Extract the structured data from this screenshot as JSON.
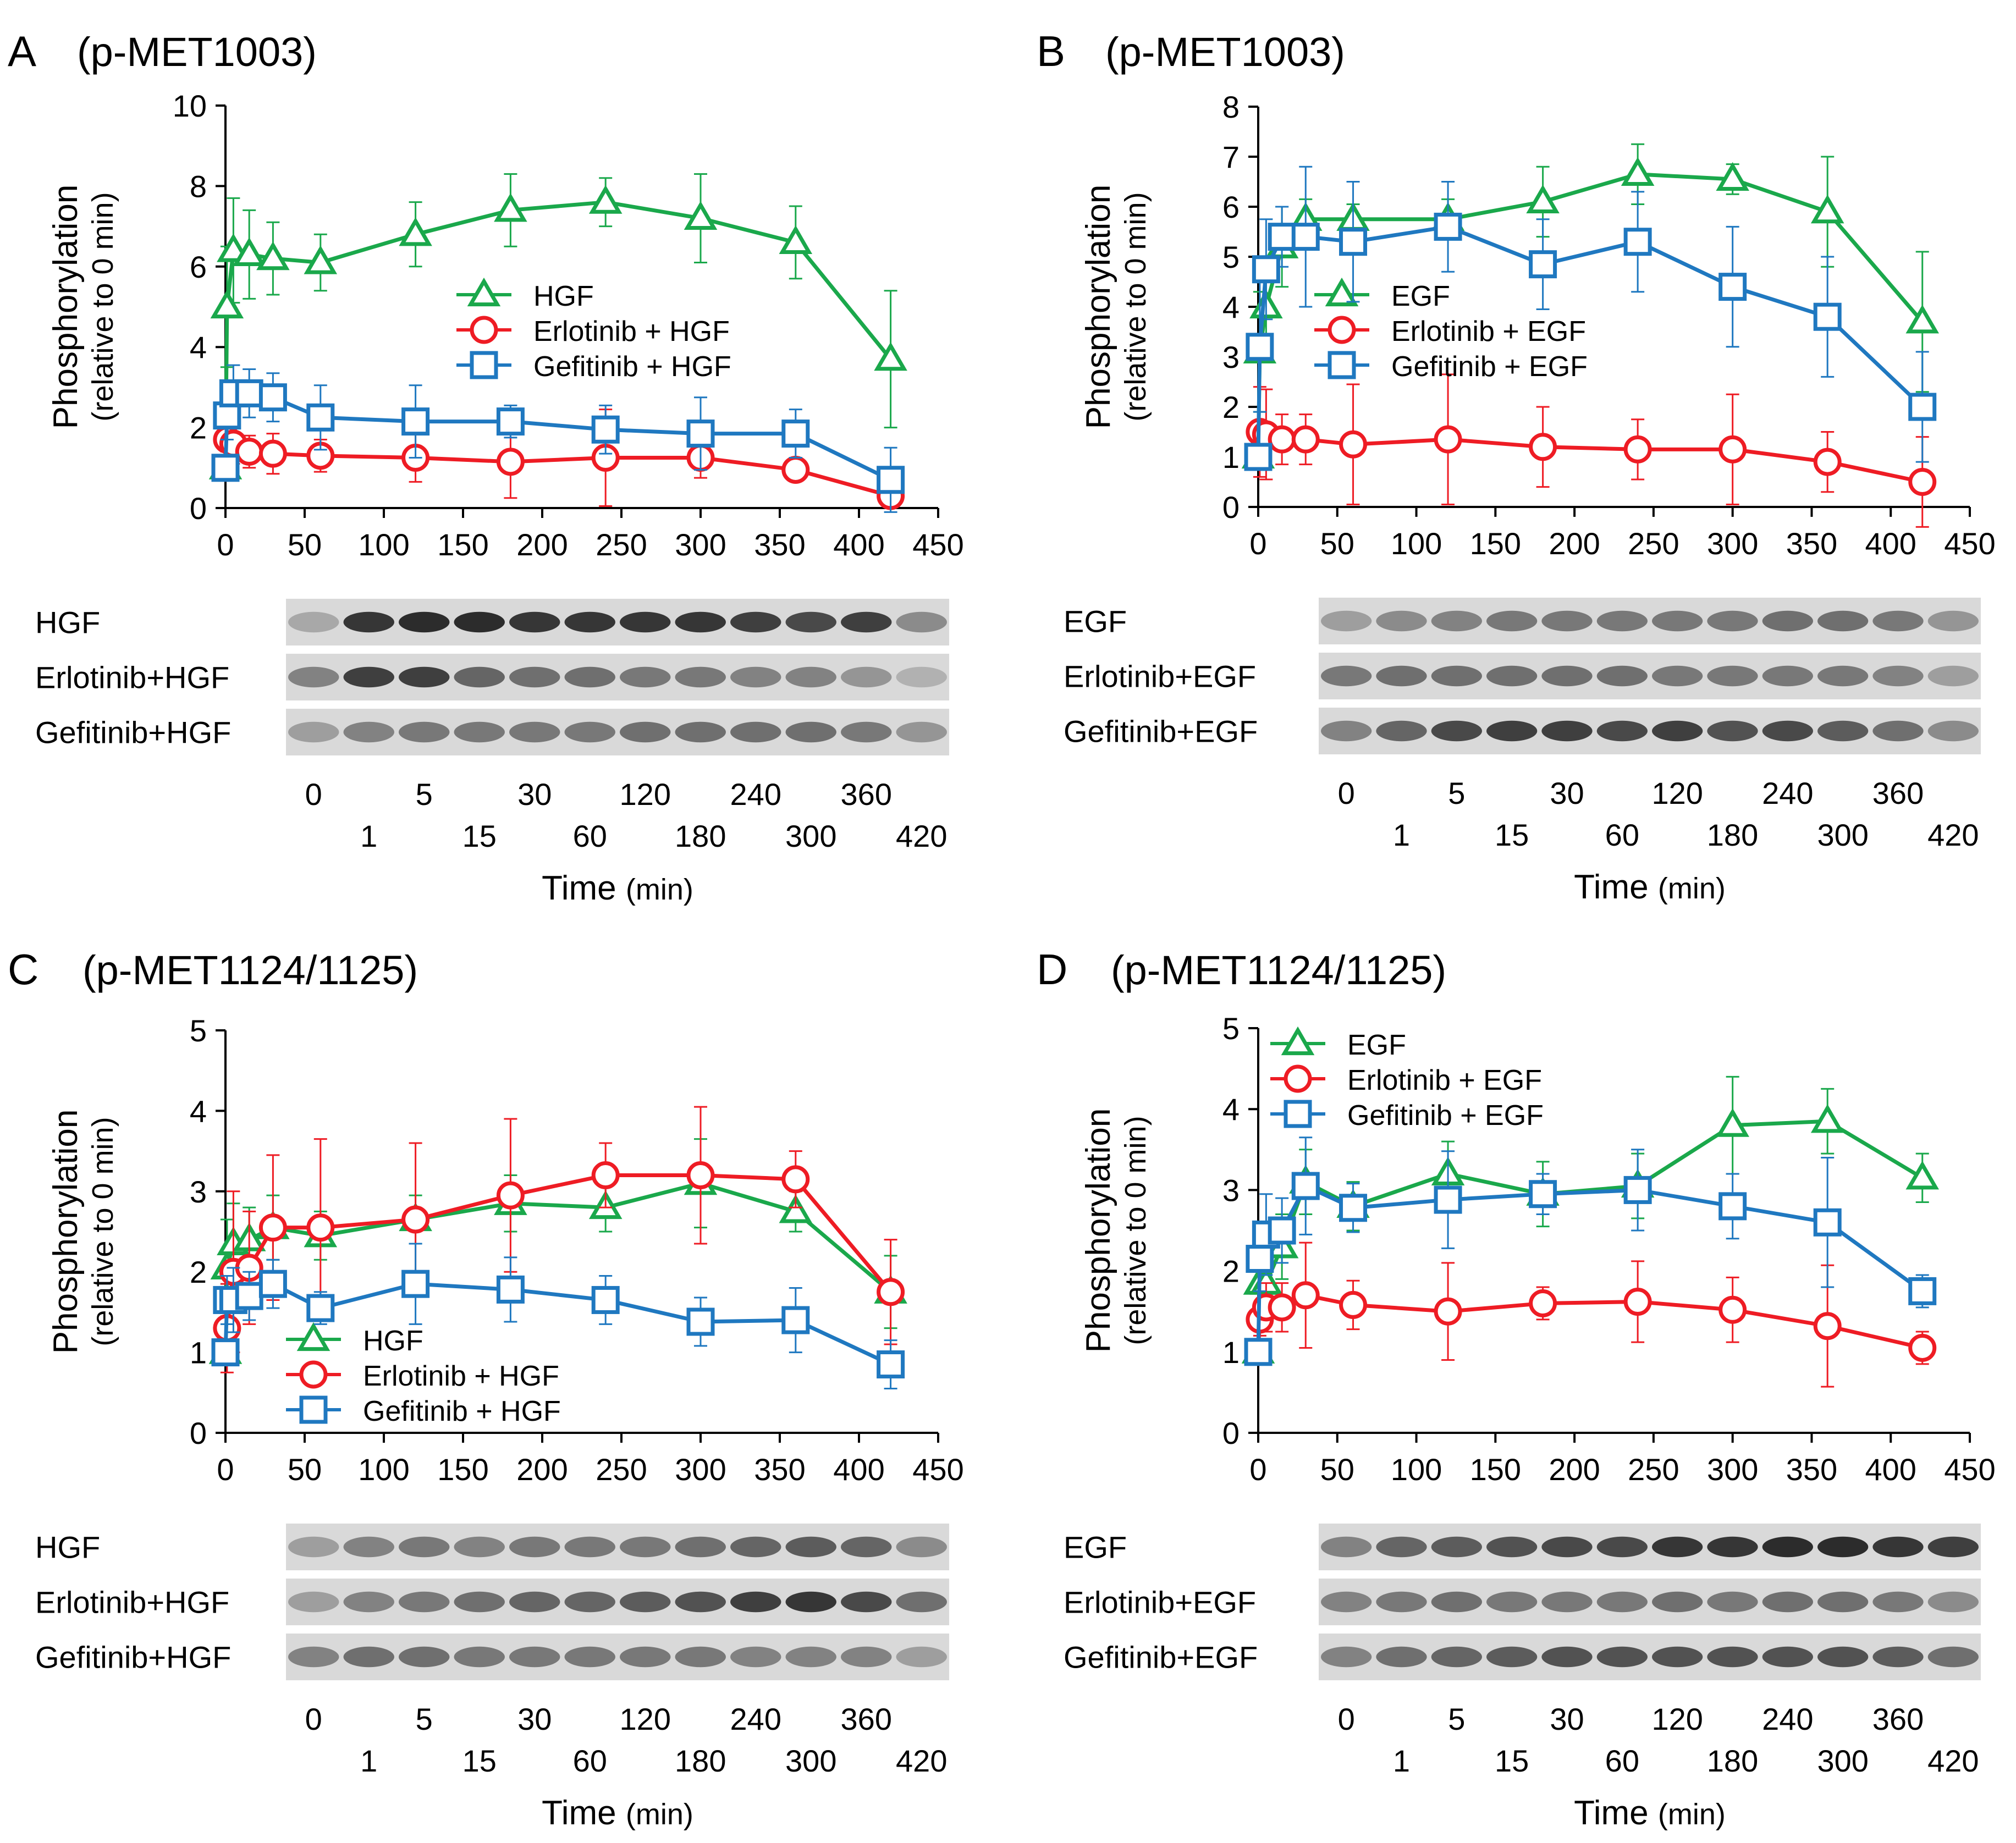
{
  "figure": {
    "colors": {
      "hgf_egf": "#1aa84b",
      "erlotinib": "#ee1c24",
      "gefitinib": "#1f78c0",
      "axis": "#000000"
    },
    "lane_labels_top": [
      "0",
      "5",
      "30",
      "120",
      "240",
      "360"
    ],
    "lane_labels_bottom": [
      "1",
      "15",
      "60",
      "180",
      "300",
      "420"
    ],
    "time_axis": {
      "main": "Time",
      "unit": "(min)"
    },
    "ylabel_main": "Phosphorylation",
    "ylabel_sub": "(relative to 0 min)"
  },
  "chart_data": [
    {
      "panel": "A",
      "title": "(p-MET1003)",
      "type": "line",
      "ylim": [
        0,
        10
      ],
      "yticks": [
        0,
        2,
        4,
        6,
        8,
        10
      ],
      "xlim": [
        0,
        450
      ],
      "xticks": [
        0,
        50,
        100,
        150,
        200,
        250,
        300,
        350,
        400,
        450
      ],
      "legend_position": "center-right",
      "x": [
        0,
        1,
        5,
        15,
        30,
        60,
        120,
        180,
        240,
        300,
        360,
        420
      ],
      "series": [
        {
          "name": "HGF",
          "marker": "triangle",
          "color": "#1aa84b",
          "values": [
            1.0,
            5.0,
            6.4,
            6.3,
            6.2,
            6.1,
            6.8,
            7.4,
            7.6,
            7.2,
            6.6,
            3.7
          ],
          "errors": [
            0,
            1.5,
            1.3,
            1.1,
            0.9,
            0.7,
            0.8,
            0.9,
            0.6,
            1.1,
            0.9,
            1.7
          ]
        },
        {
          "name": "Erlotinib + HGF",
          "marker": "circle",
          "color": "#ee1c24",
          "values": [
            1.0,
            1.7,
            1.6,
            1.4,
            1.35,
            1.3,
            1.25,
            1.15,
            1.25,
            1.25,
            0.95,
            0.3
          ],
          "errors": [
            0,
            0.3,
            0.5,
            0.4,
            0.5,
            0.4,
            0.6,
            0.9,
            1.2,
            0.5,
            0.2,
            0.1
          ]
        },
        {
          "name": "Gefitinib + HGF",
          "marker": "square",
          "color": "#1f78c0",
          "values": [
            1.0,
            2.3,
            2.85,
            2.85,
            2.75,
            2.25,
            2.15,
            2.15,
            1.95,
            1.85,
            1.85,
            0.7
          ],
          "errors": [
            0,
            0.6,
            0.7,
            0.6,
            0.6,
            0.8,
            0.9,
            0.4,
            0.6,
            0.9,
            0.6,
            0.8
          ]
        }
      ],
      "blot_labels": [
        "HGF",
        "Erlotinib+HGF",
        "Gefitinib+HGF"
      ],
      "blot_intensity": [
        [
          0.25,
          0.85,
          0.9,
          0.9,
          0.85,
          0.85,
          0.85,
          0.85,
          0.8,
          0.75,
          0.8,
          0.4
        ],
        [
          0.45,
          0.8,
          0.8,
          0.6,
          0.55,
          0.55,
          0.5,
          0.5,
          0.45,
          0.45,
          0.35,
          0.2
        ],
        [
          0.3,
          0.45,
          0.5,
          0.5,
          0.5,
          0.5,
          0.55,
          0.55,
          0.55,
          0.55,
          0.5,
          0.35
        ]
      ]
    },
    {
      "panel": "B",
      "title": "(p-MET1003)",
      "type": "line",
      "ylim": [
        0,
        8
      ],
      "yticks": [
        0,
        1,
        2,
        3,
        4,
        5,
        6,
        7,
        8
      ],
      "xlim": [
        0,
        450
      ],
      "xticks": [
        0,
        50,
        100,
        150,
        200,
        250,
        300,
        350,
        400,
        450
      ],
      "legend_position": "center",
      "x": [
        0,
        1,
        5,
        15,
        30,
        60,
        120,
        180,
        240,
        300,
        360,
        420
      ],
      "series": [
        {
          "name": "EGF",
          "marker": "triangle",
          "color": "#1aa84b",
          "values": [
            1.0,
            3.1,
            4.0,
            5.2,
            5.75,
            5.75,
            5.75,
            6.1,
            6.65,
            6.55,
            5.9,
            3.7
          ],
          "errors": [
            0,
            1.2,
            1.0,
            0.8,
            0.4,
            0.3,
            0.4,
            0.7,
            0.6,
            0.3,
            1.1,
            1.4
          ]
        },
        {
          "name": "Erlotinib + EGF",
          "marker": "circle",
          "color": "#ee1c24",
          "values": [
            1.0,
            1.5,
            1.45,
            1.35,
            1.35,
            1.25,
            1.35,
            1.2,
            1.15,
            1.15,
            0.9,
            0.5
          ],
          "errors": [
            0,
            0.9,
            0.9,
            0.5,
            0.5,
            1.2,
            1.3,
            0.8,
            0.6,
            1.1,
            0.6,
            0.9
          ]
        },
        {
          "name": "Gefitinib + EGF",
          "marker": "square",
          "color": "#1f78c0",
          "values": [
            1.0,
            3.2,
            4.75,
            5.4,
            5.4,
            5.3,
            5.6,
            4.85,
            5.3,
            4.4,
            3.8,
            2.0
          ],
          "errors": [
            0,
            1.3,
            1.0,
            0.6,
            1.4,
            1.2,
            0.9,
            0.9,
            1.0,
            1.2,
            1.2,
            1.1
          ]
        }
      ],
      "blot_labels": [
        "EGF",
        "Erlotinib+EGF",
        "Gefitinib+EGF"
      ],
      "blot_intensity": [
        [
          0.3,
          0.4,
          0.45,
          0.5,
          0.5,
          0.5,
          0.5,
          0.5,
          0.55,
          0.55,
          0.5,
          0.35
        ],
        [
          0.5,
          0.55,
          0.55,
          0.55,
          0.55,
          0.55,
          0.5,
          0.5,
          0.5,
          0.5,
          0.45,
          0.3
        ],
        [
          0.45,
          0.6,
          0.75,
          0.8,
          0.8,
          0.75,
          0.8,
          0.7,
          0.75,
          0.65,
          0.55,
          0.4
        ]
      ]
    },
    {
      "panel": "C",
      "title": "(p-MET1124/1125)",
      "type": "line",
      "ylim": [
        0,
        5
      ],
      "yticks": [
        0,
        1,
        2,
        3,
        4,
        5
      ],
      "xlim": [
        0,
        450
      ],
      "xticks": [
        0,
        50,
        100,
        150,
        200,
        250,
        300,
        350,
        400,
        450
      ],
      "legend_position": "bottom-center",
      "x": [
        0,
        1,
        5,
        15,
        30,
        60,
        120,
        180,
        240,
        300,
        360,
        420
      ],
      "series": [
        {
          "name": "HGF",
          "marker": "triangle",
          "color": "#1aa84b",
          "values": [
            1.0,
            2.05,
            2.35,
            2.4,
            2.55,
            2.45,
            2.65,
            2.85,
            2.8,
            3.1,
            2.75,
            1.75
          ],
          "errors": [
            0,
            0.6,
            0.5,
            0.4,
            0.4,
            0.3,
            0.3,
            0.35,
            0.3,
            0.55,
            0.25,
            0.45
          ]
        },
        {
          "name": "Erlotinib + HGF",
          "marker": "circle",
          "color": "#ee1c24",
          "values": [
            1.0,
            1.3,
            2.0,
            2.05,
            2.55,
            2.55,
            2.65,
            2.95,
            3.2,
            3.2,
            3.15,
            1.75
          ],
          "errors": [
            0,
            0.55,
            1.0,
            0.7,
            0.9,
            1.1,
            0.95,
            0.95,
            0.4,
            0.85,
            0.35,
            0.65
          ]
        },
        {
          "name": "Gefitinib + HGF",
          "marker": "square",
          "color": "#1f78c0",
          "values": [
            1.0,
            1.65,
            1.65,
            1.7,
            1.85,
            1.55,
            1.85,
            1.78,
            1.65,
            1.38,
            1.4,
            0.85
          ],
          "errors": [
            0,
            0.3,
            0.4,
            0.3,
            0.3,
            0.2,
            0.5,
            0.4,
            0.3,
            0.3,
            0.4,
            0.3
          ]
        }
      ],
      "blot_labels": [
        "HGF",
        "Erlotinib+HGF",
        "Gefitinib+HGF"
      ],
      "blot_intensity": [
        [
          0.3,
          0.45,
          0.5,
          0.45,
          0.5,
          0.5,
          0.5,
          0.55,
          0.6,
          0.65,
          0.6,
          0.4
        ],
        [
          0.3,
          0.45,
          0.5,
          0.55,
          0.6,
          0.6,
          0.65,
          0.7,
          0.8,
          0.85,
          0.75,
          0.55
        ],
        [
          0.45,
          0.55,
          0.55,
          0.5,
          0.5,
          0.5,
          0.5,
          0.5,
          0.45,
          0.45,
          0.45,
          0.3
        ]
      ]
    },
    {
      "panel": "D",
      "title": "(p-MET1124/1125)",
      "type": "line",
      "ylim": [
        0,
        5
      ],
      "yticks": [
        0,
        1,
        2,
        3,
        4,
        5
      ],
      "xlim": [
        0,
        450
      ],
      "xticks": [
        0,
        50,
        100,
        150,
        200,
        250,
        300,
        350,
        400,
        450
      ],
      "legend_position": "top-center",
      "x": [
        0,
        1,
        5,
        15,
        30,
        60,
        120,
        180,
        240,
        300,
        360,
        420
      ],
      "series": [
        {
          "name": "EGF",
          "marker": "triangle",
          "color": "#1aa84b",
          "values": [
            1.0,
            1.85,
            1.85,
            2.3,
            3.1,
            2.8,
            3.2,
            2.95,
            3.05,
            3.8,
            3.85,
            3.15
          ],
          "errors": [
            0,
            0.3,
            0.4,
            0.4,
            0.4,
            0.3,
            0.4,
            0.4,
            0.4,
            0.6,
            0.4,
            0.3
          ]
        },
        {
          "name": "Erlotinib + EGF",
          "marker": "circle",
          "color": "#ee1c24",
          "values": [
            1.0,
            1.4,
            1.55,
            1.55,
            1.7,
            1.58,
            1.5,
            1.6,
            1.62,
            1.52,
            1.32,
            1.05
          ],
          "errors": [
            0,
            0.2,
            0.3,
            0.3,
            0.65,
            0.3,
            0.6,
            0.2,
            0.5,
            0.4,
            0.75,
            0.2
          ]
        },
        {
          "name": "Gefitinib + EGF",
          "marker": "square",
          "color": "#1f78c0",
          "values": [
            1.0,
            2.15,
            2.45,
            2.5,
            3.05,
            2.78,
            2.88,
            2.95,
            3.0,
            2.8,
            2.6,
            1.75
          ],
          "errors": [
            0,
            0.4,
            0.5,
            0.4,
            0.6,
            0.3,
            0.6,
            0.25,
            0.5,
            0.4,
            0.8,
            0.2
          ]
        }
      ],
      "blot_labels": [
        "EGF",
        "Erlotinib+EGF",
        "Gefitinib+EGF"
      ],
      "blot_intensity": [
        [
          0.45,
          0.6,
          0.65,
          0.7,
          0.75,
          0.75,
          0.85,
          0.85,
          0.9,
          0.9,
          0.85,
          0.8
        ],
        [
          0.45,
          0.5,
          0.55,
          0.5,
          0.5,
          0.5,
          0.55,
          0.5,
          0.55,
          0.55,
          0.5,
          0.4
        ],
        [
          0.45,
          0.55,
          0.6,
          0.65,
          0.7,
          0.7,
          0.7,
          0.7,
          0.7,
          0.7,
          0.65,
          0.55
        ]
      ]
    }
  ]
}
